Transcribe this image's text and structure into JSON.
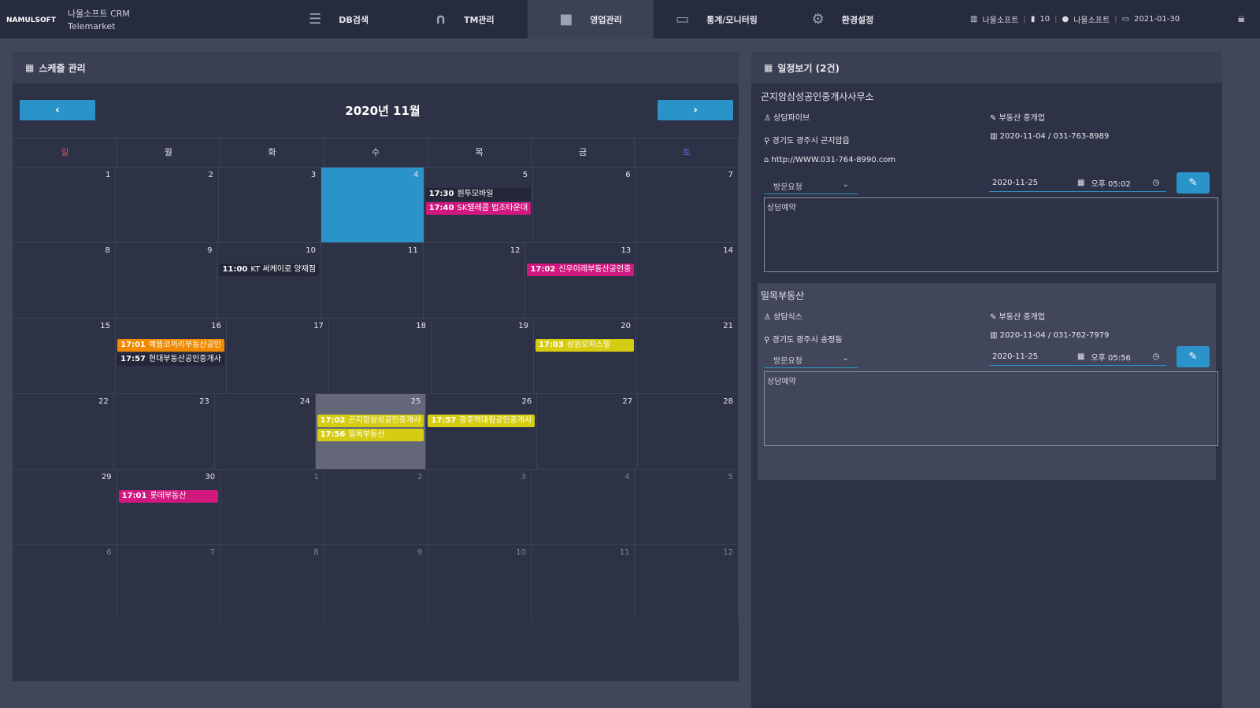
{
  "header": {
    "logo": "NAMULSOFT",
    "app_name": "나물소프트 CRM",
    "app_sub": "Telemarket",
    "nav": [
      {
        "label": "DB검색",
        "icon": "database-icon",
        "glyph": "☰"
      },
      {
        "label": "TM관리",
        "icon": "headset-icon",
        "glyph": "∩"
      },
      {
        "label": "영업관리",
        "icon": "briefcase-icon",
        "glyph": "■",
        "active": true
      },
      {
        "label": "통계/모니터링",
        "icon": "monitor-icon",
        "glyph": "▭"
      },
      {
        "label": "환경설정",
        "icon": "gear-icon",
        "glyph": "⚙"
      }
    ],
    "company": "나물소프트",
    "level": "10",
    "user": "나물소프트",
    "date": "2021-01-30"
  },
  "calendar": {
    "title": "스케줄 관리",
    "month": "2020년 11월",
    "prev": "‹",
    "next": "›",
    "weekdays": [
      "일",
      "월",
      "화",
      "수",
      "목",
      "금",
      "토"
    ],
    "colors": {
      "sun": "#e0505e",
      "sat": "#5a6fe0",
      "today": "#2a93c9",
      "dark": "#232738",
      "pink": "#d0187f",
      "orange": "#f08a00",
      "yellow": "#d6cc12"
    },
    "weeks": [
      [
        {
          "d": "1"
        },
        {
          "d": "2"
        },
        {
          "d": "3"
        },
        {
          "d": "4",
          "today": true
        },
        {
          "d": "5",
          "ev": [
            {
              "t": "17:30",
              "n": "원투모바일",
              "c": "dark"
            },
            {
              "t": "17:40",
              "n": "SK텔레콤 법조타운대",
              "c": "pink"
            }
          ]
        },
        {
          "d": "6"
        },
        {
          "d": "7"
        }
      ],
      [
        {
          "d": "8"
        },
        {
          "d": "9"
        },
        {
          "d": "10",
          "ev": [
            {
              "t": "11:00",
              "n": "KT 써케이로 양재점",
              "c": "dark"
            }
          ]
        },
        {
          "d": "11"
        },
        {
          "d": "12"
        },
        {
          "d": "13",
          "ev": [
            {
              "t": "17:02",
              "n": "신우이레부동산공인중",
              "c": "pink"
            }
          ]
        },
        {
          "d": "14"
        }
      ],
      [
        {
          "d": "15"
        },
        {
          "d": "16",
          "ev": [
            {
              "t": "17:01",
              "n": "예뜰코끼리부동산공인",
              "c": "orange"
            },
            {
              "t": "17:57",
              "n": "현대부동산공인중개사",
              "c": "dark"
            }
          ]
        },
        {
          "d": "17"
        },
        {
          "d": "18"
        },
        {
          "d": "19"
        },
        {
          "d": "20",
          "ev": [
            {
              "t": "17:03",
              "n": "상원오피스텔",
              "c": "yellow"
            }
          ]
        },
        {
          "d": "21"
        }
      ],
      [
        {
          "d": "22"
        },
        {
          "d": "23"
        },
        {
          "d": "24"
        },
        {
          "d": "25",
          "sel": true,
          "ev": [
            {
              "t": "17:02",
              "n": "곤지암삼성공인중개사",
              "c": "yellow"
            },
            {
              "t": "17:56",
              "n": "밀목부동산",
              "c": "yellow"
            }
          ]
        },
        {
          "d": "26",
          "ev": [
            {
              "t": "17:57",
              "n": "광주역대림공인중개사",
              "c": "yellow"
            }
          ]
        },
        {
          "d": "27"
        },
        {
          "d": "28"
        }
      ],
      [
        {
          "d": "29"
        },
        {
          "d": "30",
          "ev": [
            {
              "t": "17:01",
              "n": "롯데부동산",
              "c": "pink"
            }
          ]
        },
        {
          "d": "1",
          "o": true
        },
        {
          "d": "2",
          "o": true
        },
        {
          "d": "3",
          "o": true
        },
        {
          "d": "4",
          "o": true
        },
        {
          "d": "5",
          "o": true
        }
      ],
      [
        {
          "d": "6",
          "o": true
        },
        {
          "d": "7",
          "o": true
        },
        {
          "d": "8",
          "o": true
        },
        {
          "d": "9",
          "o": true
        },
        {
          "d": "10",
          "o": true
        },
        {
          "d": "11",
          "o": true
        },
        {
          "d": "12",
          "o": true
        }
      ]
    ]
  },
  "schedule": {
    "title": "일정보기 (2건)",
    "items": [
      {
        "name": "곤지암삼성공인중개사사무소",
        "manager": "상담파이브",
        "industry": "부동산 중개업",
        "address": "경기도 광주시 곤지암읍",
        "reg": "2020-11-04 / 031-763-8989",
        "url": "http://WWW.031-764-8990.com",
        "status": "방문요청",
        "date": "2020-11-25",
        "time": "오후 05:02",
        "memo": "상담예약"
      },
      {
        "name": "밀목부동산",
        "manager": "상담식스",
        "industry": "부동산 중개업",
        "address": "경기도 광주시 송정동",
        "reg": "2020-11-04 / 031-762-7979",
        "status": "방문요청",
        "date": "2020-11-25",
        "time": "오후 05:56",
        "memo": "상담예약"
      }
    ]
  }
}
